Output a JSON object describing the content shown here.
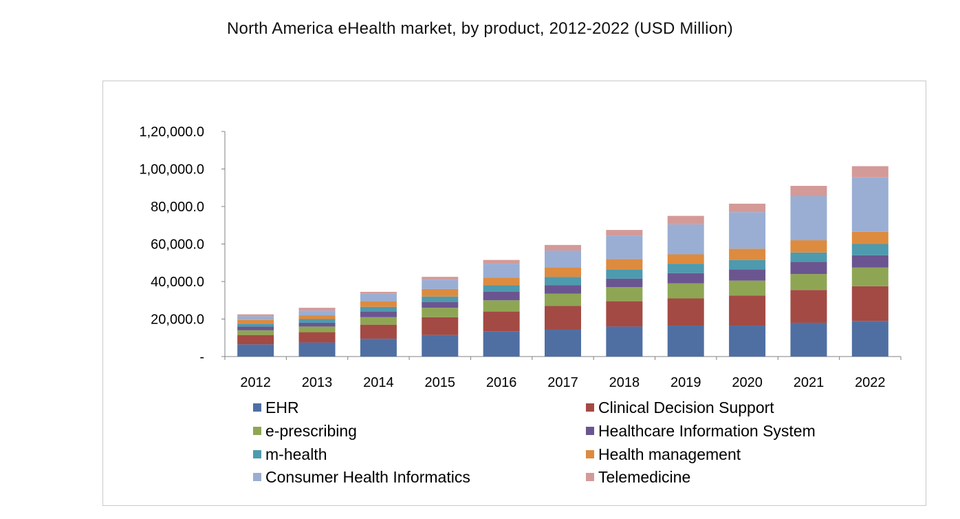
{
  "page": {
    "title": "North America eHealth market, by product, 2012-2022 (USD Million)"
  },
  "chart_data": {
    "type": "bar",
    "stacked": true,
    "title": "North America eHealth market, by product, 2012-2022 (USD Million)",
    "categories": [
      "2012",
      "2013",
      "2014",
      "2015",
      "2016",
      "2017",
      "2018",
      "2019",
      "2020",
      "2021",
      "2022"
    ],
    "ylim": [
      0,
      120000
    ],
    "y_ticks": [
      0,
      20000,
      40000,
      60000,
      80000,
      100000,
      120000
    ],
    "y_tick_labels": [
      "-",
      "20,000.0",
      "40,000.0",
      "60,000.0",
      "80,000.0",
      "1,00,000.0",
      "1,20,000.0"
    ],
    "grid": false,
    "legend_position": "bottom",
    "series": [
      {
        "name": "EHR",
        "color": "#4F6FA3",
        "values": [
          6500,
          7500,
          9500,
          11500,
          13500,
          14500,
          16000,
          16500,
          16500,
          18000,
          19000
        ]
      },
      {
        "name": "Clinical Decision Support",
        "color": "#A34A44",
        "values": [
          5000,
          5500,
          7500,
          9500,
          10500,
          12500,
          13500,
          14500,
          16000,
          17500,
          18500
        ]
      },
      {
        "name": "e-prescribing",
        "color": "#8EA654",
        "values": [
          2500,
          3000,
          4000,
          5000,
          6000,
          6500,
          7500,
          8000,
          8000,
          8500,
          10000
        ]
      },
      {
        "name": "Healthcare Information System",
        "color": "#6B5590",
        "values": [
          2000,
          2000,
          3000,
          3000,
          4500,
          4500,
          4500,
          5500,
          6000,
          6500,
          6500
        ]
      },
      {
        "name": "m-health",
        "color": "#4E9AAE",
        "values": [
          1500,
          2000,
          2500,
          3000,
          3500,
          4500,
          5000,
          5000,
          5000,
          5000,
          6000
        ]
      },
      {
        "name": "Health management",
        "color": "#DD8B3F",
        "values": [
          2000,
          2000,
          3000,
          4000,
          4000,
          5000,
          5500,
          5000,
          6000,
          6500,
          6500
        ]
      },
      {
        "name": "Consumer Health Informatics",
        "color": "#9AAED3",
        "values": [
          2000,
          2500,
          4000,
          5000,
          7500,
          9000,
          12500,
          16000,
          19500,
          23500,
          29000
        ]
      },
      {
        "name": "Telemedicine",
        "color": "#D39A98",
        "values": [
          1000,
          1500,
          1000,
          1500,
          2000,
          3000,
          3000,
          4500,
          4500,
          5500,
          6000
        ]
      }
    ]
  }
}
